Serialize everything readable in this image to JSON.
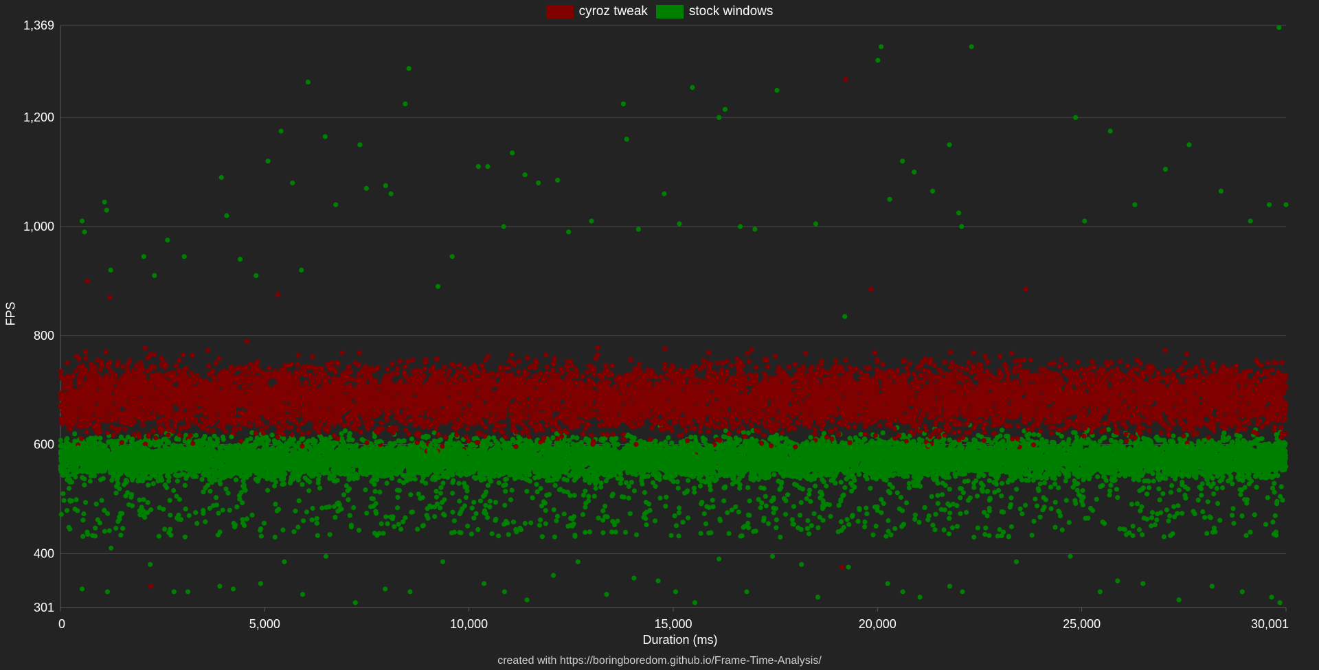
{
  "legend": [
    {
      "label": "cyroz tweak",
      "color": "#800000"
    },
    {
      "label": "stock windows",
      "color": "#008000"
    }
  ],
  "credit": "created with https://boringboredom.github.io/Frame-Time-Analysis/",
  "chart_data": {
    "type": "scatter",
    "title": "",
    "xlabel": "Duration (ms)",
    "ylabel": "FPS",
    "xlim": [
      0,
      30001
    ],
    "ylim": [
      301,
      1369
    ],
    "x_ticks": [
      0,
      5000,
      10000,
      15000,
      20000,
      25000,
      30001
    ],
    "x_tick_labels": [
      "0",
      "5,000",
      "10,000",
      "15,000",
      "20,000",
      "25,000",
      "30,001"
    ],
    "y_ticks": [
      301,
      400,
      600,
      800,
      1000,
      1200,
      1369
    ],
    "y_tick_labels": [
      "301",
      "400",
      "600",
      "800",
      "1,000",
      "1,200",
      "1,369"
    ],
    "grid": true,
    "legend_position": "top-center",
    "series": [
      {
        "name": "stock windows",
        "color": "#008000",
        "core": {
          "range": [
            500,
            650
          ],
          "points_shown": 9000
        },
        "outliers": [
          [
            530,
            1010
          ],
          [
            590,
            990
          ],
          [
            1080,
            1045
          ],
          [
            1130,
            1030
          ],
          [
            1230,
            920
          ],
          [
            2040,
            945
          ],
          [
            2300,
            910
          ],
          [
            2620,
            975
          ],
          [
            3030,
            945
          ],
          [
            3940,
            1090
          ],
          [
            4070,
            1020
          ],
          [
            4400,
            940
          ],
          [
            4790,
            910
          ],
          [
            5080,
            1120
          ],
          [
            5400,
            1175
          ],
          [
            5680,
            1080
          ],
          [
            5900,
            920
          ],
          [
            6060,
            1265
          ],
          [
            6480,
            1165
          ],
          [
            6740,
            1040
          ],
          [
            7330,
            1150
          ],
          [
            7490,
            1070
          ],
          [
            7960,
            1075
          ],
          [
            8090,
            1060
          ],
          [
            8440,
            1225
          ],
          [
            8530,
            1290
          ],
          [
            9240,
            890
          ],
          [
            9590,
            945
          ],
          [
            10230,
            1110
          ],
          [
            10460,
            1110
          ],
          [
            10850,
            1000
          ],
          [
            11060,
            1135
          ],
          [
            11370,
            1095
          ],
          [
            11700,
            1080
          ],
          [
            12170,
            1085
          ],
          [
            12440,
            990
          ],
          [
            13000,
            1010
          ],
          [
            13780,
            1225
          ],
          [
            13860,
            1160
          ],
          [
            14150,
            995
          ],
          [
            14780,
            1060
          ],
          [
            15150,
            1005
          ],
          [
            15470,
            1255
          ],
          [
            16120,
            1200
          ],
          [
            16270,
            1215
          ],
          [
            16640,
            1000
          ],
          [
            17000,
            995
          ],
          [
            17540,
            1250
          ],
          [
            18490,
            1005
          ],
          [
            19200,
            835
          ],
          [
            20010,
            1305
          ],
          [
            20090,
            1330
          ],
          [
            20300,
            1050
          ],
          [
            20610,
            1120
          ],
          [
            20900,
            1100
          ],
          [
            21350,
            1065
          ],
          [
            21760,
            1150
          ],
          [
            21990,
            1025
          ],
          [
            22060,
            1000
          ],
          [
            22300,
            1330
          ],
          [
            24850,
            1200
          ],
          [
            25070,
            1010
          ],
          [
            25700,
            1175
          ],
          [
            26300,
            1040
          ],
          [
            27050,
            1105
          ],
          [
            27630,
            1150
          ],
          [
            28410,
            1065
          ],
          [
            29130,
            1010
          ],
          [
            29590,
            1040
          ],
          [
            29830,
            1365
          ],
          [
            30001,
            1040
          ],
          [
            530,
            335
          ],
          [
            1150,
            330
          ],
          [
            1240,
            410
          ],
          [
            2200,
            380
          ],
          [
            2780,
            330
          ],
          [
            3120,
            330
          ],
          [
            3900,
            340
          ],
          [
            4230,
            335
          ],
          [
            4900,
            345
          ],
          [
            5480,
            385
          ],
          [
            5930,
            325
          ],
          [
            6500,
            395
          ],
          [
            7220,
            310
          ],
          [
            7950,
            335
          ],
          [
            8560,
            330
          ],
          [
            9360,
            385
          ],
          [
            10370,
            345
          ],
          [
            10870,
            330
          ],
          [
            11420,
            315
          ],
          [
            12070,
            360
          ],
          [
            12670,
            385
          ],
          [
            13370,
            325
          ],
          [
            14040,
            355
          ],
          [
            14630,
            350
          ],
          [
            15060,
            330
          ],
          [
            15530,
            310
          ],
          [
            16120,
            390
          ],
          [
            16800,
            330
          ],
          [
            17430,
            395
          ],
          [
            18140,
            380
          ],
          [
            18540,
            320
          ],
          [
            19290,
            375
          ],
          [
            20250,
            345
          ],
          [
            20620,
            330
          ],
          [
            21040,
            320
          ],
          [
            21770,
            340
          ],
          [
            22080,
            330
          ],
          [
            23400,
            385
          ],
          [
            24720,
            395
          ],
          [
            25450,
            330
          ],
          [
            25880,
            350
          ],
          [
            26500,
            345
          ],
          [
            27380,
            315
          ],
          [
            28190,
            340
          ],
          [
            28930,
            330
          ],
          [
            29650,
            320
          ],
          [
            29850,
            310
          ]
        ]
      },
      {
        "name": "cyroz tweak",
        "color": "#800000",
        "core": {
          "range": [
            560,
            810
          ],
          "points_shown": 9000
        },
        "outliers": [
          [
            660,
            900
          ],
          [
            1210,
            870
          ],
          [
            5320,
            875
          ],
          [
            19220,
            1270
          ],
          [
            19840,
            885
          ],
          [
            23630,
            885
          ],
          [
            2210,
            340
          ],
          [
            19130,
            375
          ]
        ]
      }
    ]
  }
}
